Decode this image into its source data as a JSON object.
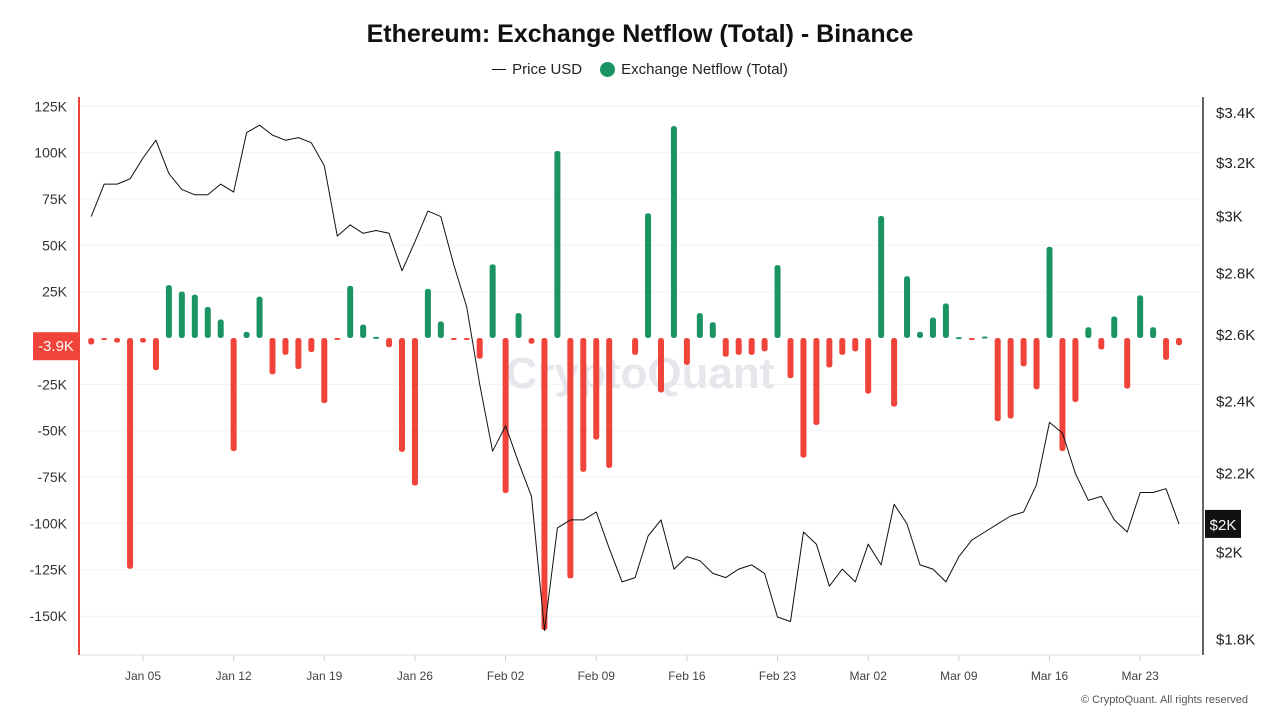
{
  "chart_data": {
    "type": "bar+line",
    "title": "Ethereum: Exchange Netflow (Total) - Binance",
    "legend": [
      {
        "name": "Price USD",
        "type": "line",
        "color": "#111111"
      },
      {
        "name": "Exchange Netflow (Total)",
        "type": "bar",
        "color": "#1a9462"
      }
    ],
    "legend_placement": "top-center",
    "colors": {
      "positive": "#1a9462",
      "negative": "#f0443a",
      "price": "#111111",
      "left_axis": "#f0443a"
    },
    "x_ticks": [
      "Jan 05",
      "Jan 12",
      "Jan 19",
      "Jan 26",
      "Feb 02",
      "Feb 09",
      "Feb 16",
      "Feb 23",
      "Mar 02",
      "Mar 09",
      "Mar 16",
      "Mar 23"
    ],
    "left_axis": {
      "unit": "K",
      "ylim": [
        -171,
        130
      ],
      "ticks": [
        "125K",
        "100K",
        "75K",
        "50K",
        "25K",
        "-25K",
        "-50K",
        "-75K",
        "-100K",
        "-125K",
        "-150K"
      ],
      "tick_values": [
        125,
        100,
        75,
        50,
        25,
        -25,
        -50,
        -75,
        -100,
        -125,
        -150
      ]
    },
    "right_axis": {
      "scale": "log",
      "ylim": [
        1767,
        3466
      ],
      "ticks": [
        "$3.4K",
        "$3.2K",
        "$3K",
        "$2.8K",
        "$2.6K",
        "$2.4K",
        "$2.2K",
        "$2K",
        "$1.8K"
      ],
      "tick_values": [
        3400,
        3200,
        3000,
        2800,
        2600,
        2400,
        2200,
        2000,
        1800
      ]
    },
    "grid": true,
    "current_netflow_label": "-3.9K",
    "current_price_label": "$2K",
    "dates": [
      "Jan 01",
      "Jan 02",
      "Jan 03",
      "Jan 04",
      "Jan 05",
      "Jan 06",
      "Jan 07",
      "Jan 08",
      "Jan 09",
      "Jan 10",
      "Jan 11",
      "Jan 12",
      "Jan 13",
      "Jan 14",
      "Jan 15",
      "Jan 16",
      "Jan 17",
      "Jan 18",
      "Jan 19",
      "Jan 20",
      "Jan 21",
      "Jan 22",
      "Jan 23",
      "Jan 24",
      "Jan 25",
      "Jan 26",
      "Jan 27",
      "Jan 28",
      "Jan 29",
      "Jan 30",
      "Jan 31",
      "Feb 01",
      "Feb 02",
      "Feb 03",
      "Feb 04",
      "Feb 05",
      "Feb 06",
      "Feb 07",
      "Feb 08",
      "Feb 09",
      "Feb 10",
      "Feb 11",
      "Feb 12",
      "Feb 13",
      "Feb 14",
      "Feb 15",
      "Feb 16",
      "Feb 17",
      "Feb 18",
      "Feb 19",
      "Feb 20",
      "Feb 21",
      "Feb 22",
      "Feb 23",
      "Feb 24",
      "Feb 25",
      "Feb 26",
      "Feb 27",
      "Feb 28",
      "Mar 01",
      "Mar 02",
      "Mar 03",
      "Mar 04",
      "Mar 05",
      "Mar 06",
      "Mar 07",
      "Mar 08",
      "Mar 09",
      "Mar 10",
      "Mar 11",
      "Mar 12",
      "Mar 13",
      "Mar 14",
      "Mar 15",
      "Mar 16",
      "Mar 17",
      "Mar 18",
      "Mar 19",
      "Mar 20",
      "Mar 21",
      "Mar 22",
      "Mar 23",
      "Mar 24",
      "Mar 25",
      "Mar 26"
    ],
    "series": [
      {
        "name": "Exchange Netflow (Total)",
        "unit": "K ETH",
        "values": [
          -3.5,
          -0.3,
          -2.5,
          -124.5,
          -2.5,
          -17.4,
          28.5,
          25,
          23.4,
          16.7,
          10,
          -61,
          3.3,
          22.3,
          -19.6,
          -9.1,
          -16.7,
          -7.6,
          -35.1,
          -0.5,
          28.1,
          7.2,
          0.6,
          -5,
          -61.4,
          -79.6,
          26.5,
          8.9,
          -0.5,
          -0.7,
          -11.2,
          39.7,
          -83.7,
          13.4,
          -3.1,
          -157.6,
          100.9,
          -129.7,
          -72.2,
          -54.8,
          -70.1,
          0,
          -9.1,
          67.2,
          -29.4,
          114.3,
          -14.5,
          13.4,
          8.5,
          -10.1,
          -9.1,
          -9.1,
          -7.2,
          39.3,
          -21.7,
          -64.5,
          -46.9,
          -15.9,
          -9.1,
          -7.2,
          -30,
          65.8,
          -37,
          33.3,
          3.3,
          11,
          18.6,
          0.5,
          -0.8,
          0.8,
          -44.9,
          -43.4,
          -15.3,
          -27.7,
          49.2,
          -61,
          -34.5,
          5.8,
          -6.2,
          11.6,
          -27.3,
          23,
          5.8,
          -11.8,
          -3.9
        ]
      },
      {
        "name": "Price USD",
        "unit": "USD",
        "values": [
          3000,
          3120,
          3120,
          3140,
          3220,
          3290,
          3160,
          3100,
          3080,
          3080,
          3120,
          3090,
          3320,
          3350,
          3310,
          3290,
          3300,
          3280,
          3190,
          2930,
          2970,
          2940,
          2950,
          2940,
          2810,
          2910,
          3020,
          3000,
          2830,
          2690,
          2450,
          2260,
          2330,
          2230,
          2140,
          1820,
          2060,
          2080,
          2080,
          2100,
          2010,
          1930,
          1940,
          2040,
          2080,
          1960,
          1990,
          1980,
          1950,
          1940,
          1960,
          1970,
          1950,
          1850,
          1840,
          2050,
          2020,
          1920,
          1960,
          1930,
          2020,
          1970,
          2120,
          2070,
          1970,
          1960,
          1930,
          1990,
          2030,
          2050,
          2070,
          2090,
          2100,
          2170,
          2340,
          2310,
          2200,
          2130,
          2140,
          2080,
          2050,
          2150,
          2150,
          2160,
          2070
        ]
      }
    ]
  },
  "watermark": "CryptoQuant",
  "footer": "© CryptoQuant. All rights reserved"
}
